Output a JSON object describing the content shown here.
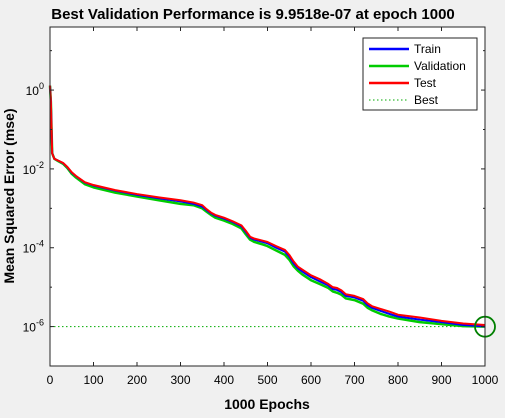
{
  "chart_data": {
    "type": "line",
    "title": "Best Validation Performance is 9.9518e-07 at epoch 1000",
    "xlabel": "1000 Epochs",
    "ylabel": "Mean Squared Error  (mse)",
    "xlim": [
      0,
      1000
    ],
    "ylim_log10": [
      -7,
      1.6
    ],
    "yscale": "log",
    "x_ticks": [
      0,
      100,
      200,
      300,
      400,
      500,
      600,
      700,
      800,
      900,
      1000
    ],
    "x_tick_labels": [
      "0",
      "100",
      "200",
      "300",
      "400",
      "500",
      "600",
      "700",
      "800",
      "900",
      "1000"
    ],
    "y_ticks_log10": [
      0,
      -2,
      -4,
      -6
    ],
    "y_tick_labels": [
      {
        "base": "10",
        "exp": "0"
      },
      {
        "base": "10",
        "exp": "-2"
      },
      {
        "base": "10",
        "exp": "-4"
      },
      {
        "base": "10",
        "exp": "-6"
      }
    ],
    "grid": false,
    "legend_position": "top-right",
    "x": [
      0,
      2,
      5,
      10,
      20,
      30,
      40,
      50,
      60,
      80,
      100,
      150,
      200,
      250,
      300,
      330,
      350,
      360,
      370,
      380,
      400,
      420,
      440,
      450,
      460,
      470,
      480,
      490,
      500,
      520,
      540,
      550,
      560,
      570,
      580,
      600,
      620,
      640,
      650,
      660,
      670,
      680,
      700,
      720,
      730,
      740,
      760,
      780,
      800,
      850,
      900,
      950,
      1000
    ],
    "series": [
      {
        "name": "Train",
        "color": "#0000ff",
        "values": [
          1.3,
          0.5,
          0.025,
          0.018,
          0.016,
          0.014,
          0.011,
          0.008,
          0.0065,
          0.0045,
          0.0038,
          0.0028,
          0.0022,
          0.0018,
          0.0015,
          0.0013,
          0.0011,
          0.0009,
          0.00075,
          0.00065,
          0.00055,
          0.00045,
          0.00035,
          0.00025,
          0.00018,
          0.00016,
          0.00015,
          0.00014,
          0.00013,
          0.0001,
          8e-05,
          6e-05,
          4e-05,
          3e-05,
          2.5e-05,
          1.8e-05,
          1.4e-05,
          1.1e-05,
          9e-06,
          8.5e-06,
          7.5e-06,
          6e-06,
          5.5e-06,
          4.5e-06,
          3.5e-06,
          3e-06,
          2.5e-06,
          2.1e-06,
          1.8e-06,
          1.5e-06,
          1.3e-06,
          1.1e-06,
          1.01e-06
        ]
      },
      {
        "name": "Validation",
        "color": "#00cc00",
        "values": [
          1.3,
          0.5,
          0.025,
          0.018,
          0.0155,
          0.0135,
          0.0105,
          0.0075,
          0.006,
          0.0041,
          0.0034,
          0.0025,
          0.002,
          0.0016,
          0.0013,
          0.0012,
          0.001,
          0.00082,
          0.00068,
          0.00058,
          0.00049,
          0.0004,
          0.00031,
          0.00022,
          0.00016,
          0.00014,
          0.00013,
          0.00012,
          0.00011,
          8.5e-05,
          6.6e-05,
          5e-05,
          3.4e-05,
          2.6e-05,
          2.1e-05,
          1.5e-05,
          1.2e-05,
          9.5e-06,
          7.8e-06,
          7.2e-06,
          6.4e-06,
          5.2e-06,
          4.7e-06,
          3.8e-06,
          3e-06,
          2.6e-06,
          2.1e-06,
          1.8e-06,
          1.6e-06,
          1.3e-06,
          1.15e-06,
          1.03e-06,
          9.9518e-07
        ]
      },
      {
        "name": "Test",
        "color": "#ff0000",
        "values": [
          1.3,
          0.5,
          0.025,
          0.018,
          0.016,
          0.0142,
          0.0112,
          0.0082,
          0.0066,
          0.0046,
          0.0039,
          0.0029,
          0.0023,
          0.0019,
          0.0016,
          0.0014,
          0.0012,
          0.00095,
          0.00078,
          0.00068,
          0.00058,
          0.00047,
          0.00037,
          0.00027,
          0.00019,
          0.00017,
          0.00016,
          0.00015,
          0.00014,
          0.00011,
          8.8e-05,
          6.6e-05,
          4.5e-05,
          3.3e-05,
          2.8e-05,
          2e-05,
          1.6e-05,
          1.2e-05,
          1e-05,
          9.5e-06,
          8.3e-06,
          6.6e-06,
          6e-06,
          5e-06,
          3.9e-06,
          3.3e-06,
          2.8e-06,
          2.4e-06,
          2e-06,
          1.7e-06,
          1.4e-06,
          1.2e-06,
          1.1e-06
        ]
      }
    ],
    "best": {
      "label": "Best",
      "epoch": 1000,
      "value": 9.9518e-07,
      "color": "#00aa00"
    }
  }
}
